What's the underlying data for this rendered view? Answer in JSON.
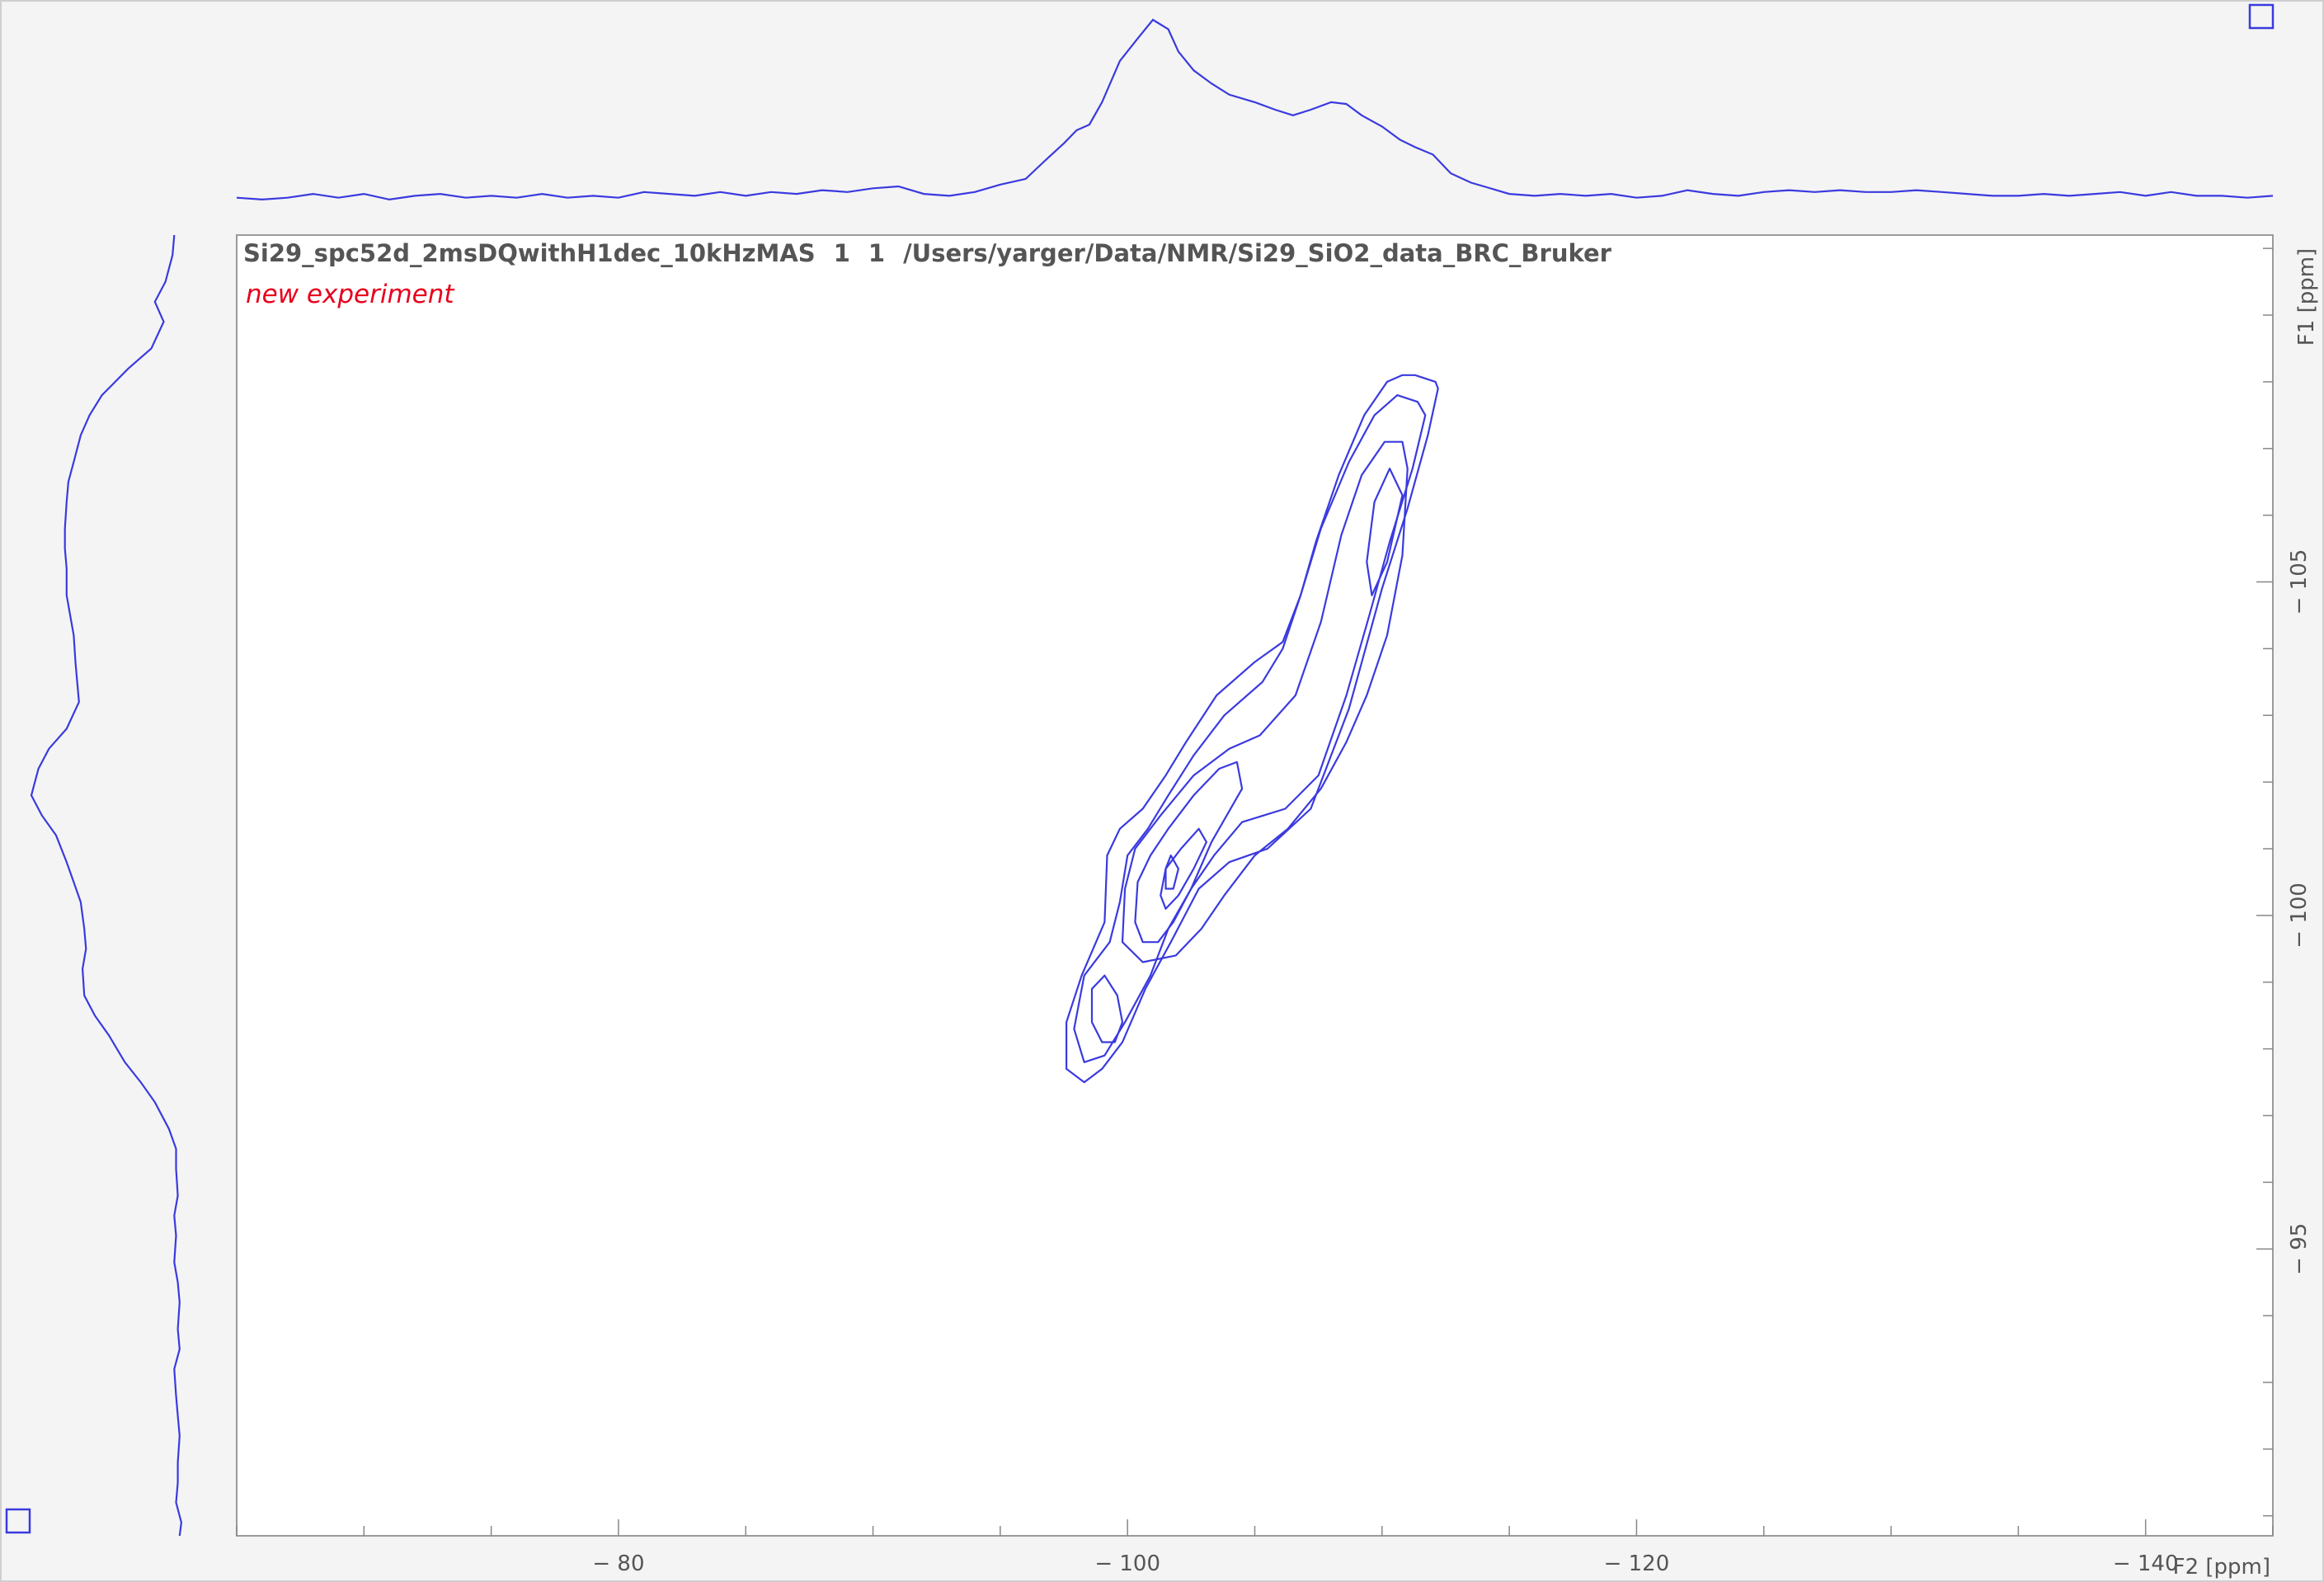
{
  "header": {
    "dataset": "Si29_spc52d_2msDQwithH1dec_10kHzMAS",
    "expno": "1",
    "procno": "1",
    "path": "/Users/yarger/Data/NMR/Si29_SiO2_data_BRC_Bruker",
    "status": "new experiment"
  },
  "colors": {
    "contour": "#3a3adf",
    "projection": "#3a3adf",
    "status": "#e8001c",
    "axis_text": "#555555",
    "plot_background": "#ffffff",
    "outer_background": "#f4f4f4",
    "frame": "#9a9a9a"
  },
  "chart_data": {
    "type": "contour",
    "x_axis": {
      "title": "F2 [ppm]",
      "range": [
        -65,
        -145
      ],
      "major_ticks": [
        -80,
        -100,
        -120,
        -140
      ],
      "tick_labels": [
        "− 80",
        "− 100",
        "− 120",
        "− 140"
      ],
      "minor_step": 5
    },
    "y_axis": {
      "title": "F1 [ppm]",
      "range": [
        -110.2,
        -90.7
      ],
      "major_ticks": [
        -105,
        -100,
        -95
      ],
      "tick_labels": [
        "− 105",
        "− 100",
        "− 95"
      ],
      "minor_step": 1
    },
    "contour_levels": [
      {
        "points": [
          [
            -112.2,
            -107.9
          ],
          [
            -111.8,
            -107.2
          ],
          [
            -111,
            -106.1
          ],
          [
            -110,
            -104.9
          ],
          [
            -108.7,
            -103.1
          ],
          [
            -107.2,
            -101.6
          ],
          [
            -105.5,
            -101
          ],
          [
            -104,
            -100.8
          ],
          [
            -102.8,
            -100.4
          ],
          [
            -101.7,
            -99.6
          ],
          [
            -100.7,
            -98.9
          ],
          [
            -99.8,
            -98.1
          ],
          [
            -99,
            -97.7
          ],
          [
            -98.3,
            -97.5
          ],
          [
            -97.6,
            -97.7
          ],
          [
            -97.6,
            -98.4
          ],
          [
            -98.2,
            -99.1
          ],
          [
            -99.1,
            -99.9
          ],
          [
            -99.2,
            -100.9
          ],
          [
            -99.7,
            -101.3
          ],
          [
            -100.6,
            -101.6
          ],
          [
            -101.5,
            -102.1
          ],
          [
            -102.3,
            -102.6
          ],
          [
            -103.5,
            -103.3
          ],
          [
            -105,
            -103.8
          ],
          [
            -106.1,
            -104.1
          ],
          [
            -106.8,
            -104.8
          ],
          [
            -107.4,
            -105.6
          ],
          [
            -108.3,
            -106.6
          ],
          [
            -109.3,
            -107.5
          ],
          [
            -110.2,
            -108
          ],
          [
            -110.8,
            -108.1
          ],
          [
            -111.3,
            -108.1
          ],
          [
            -112.1,
            -108
          ]
        ]
      },
      {
        "points": [
          [
            -111.7,
            -107.5
          ],
          [
            -111.2,
            -106.7
          ],
          [
            -110.3,
            -105.6
          ],
          [
            -109.5,
            -104.5
          ],
          [
            -108.6,
            -103.3
          ],
          [
            -107.5,
            -102.1
          ],
          [
            -106.2,
            -101.6
          ],
          [
            -104.5,
            -101.4
          ],
          [
            -103.4,
            -100.9
          ],
          [
            -102.5,
            -100.4
          ],
          [
            -101.6,
            -99.8
          ],
          [
            -100.9,
            -99.1
          ],
          [
            -99.9,
            -98.4
          ],
          [
            -99.1,
            -97.9
          ],
          [
            -98.3,
            -97.8
          ],
          [
            -97.9,
            -98.3
          ],
          [
            -98.3,
            -99.1
          ],
          [
            -99.3,
            -99.6
          ],
          [
            -99.7,
            -100.2
          ],
          [
            -100,
            -100.9
          ],
          [
            -100.8,
            -101.3
          ],
          [
            -101.6,
            -101.8
          ],
          [
            -102.6,
            -102.4
          ],
          [
            -103.8,
            -103
          ],
          [
            -105.3,
            -103.5
          ],
          [
            -106.1,
            -104
          ],
          [
            -106.8,
            -104.8
          ],
          [
            -107.6,
            -105.8
          ],
          [
            -108.7,
            -106.8
          ],
          [
            -109.7,
            -107.5
          ],
          [
            -110.6,
            -107.8
          ],
          [
            -111.4,
            -107.7
          ]
        ]
      },
      {
        "points": [
          [
            -111,
            -106.7
          ],
          [
            -110.8,
            -105.4
          ],
          [
            -110.2,
            -104.2
          ],
          [
            -109.4,
            -103.3
          ],
          [
            -108.6,
            -102.6
          ],
          [
            -107.6,
            -101.9
          ],
          [
            -106.3,
            -101.3
          ],
          [
            -105,
            -100.9
          ],
          [
            -103.8,
            -100.3
          ],
          [
            -102.9,
            -99.8
          ],
          [
            -101.9,
            -99.4
          ],
          [
            -100.6,
            -99.3
          ],
          [
            -99.8,
            -99.6
          ],
          [
            -99.9,
            -100.4
          ],
          [
            -100.3,
            -101
          ],
          [
            -101.3,
            -101.5
          ],
          [
            -102.6,
            -102.1
          ],
          [
            -104,
            -102.5
          ],
          [
            -105.2,
            -102.7
          ],
          [
            -106.6,
            -103.3
          ],
          [
            -107.6,
            -104.4
          ],
          [
            -108.4,
            -105.7
          ],
          [
            -109.2,
            -106.6
          ],
          [
            -110.1,
            -107.1
          ],
          [
            -110.8,
            -107.1
          ]
        ]
      },
      {
        "points": [
          [
            -110.8,
            -106.3
          ],
          [
            -110.2,
            -105.3
          ],
          [
            -109.6,
            -104.8
          ],
          [
            -109.4,
            -105.3
          ],
          [
            -109.7,
            -106.2
          ],
          [
            -110.3,
            -106.7
          ]
        ]
      },
      {
        "points": [
          [
            -104.5,
            -101.9
          ],
          [
            -103.3,
            -101.1
          ],
          [
            -102.5,
            -100.4
          ],
          [
            -101.8,
            -99.9
          ],
          [
            -101.2,
            -99.6
          ],
          [
            -100.6,
            -99.6
          ],
          [
            -100.3,
            -99.9
          ],
          [
            -100.4,
            -100.5
          ],
          [
            -100.9,
            -100.9
          ],
          [
            -101.6,
            -101.3
          ],
          [
            -102.6,
            -101.8
          ],
          [
            -103.6,
            -102.2
          ],
          [
            -104.3,
            -102.3
          ]
        ]
      },
      {
        "points": [
          [
            -103.1,
            -101.1
          ],
          [
            -102.6,
            -100.7
          ],
          [
            -102,
            -100.3
          ],
          [
            -101.5,
            -100.1
          ],
          [
            -101.3,
            -100.3
          ],
          [
            -101.5,
            -100.7
          ],
          [
            -102.1,
            -101
          ],
          [
            -102.8,
            -101.3
          ]
        ]
      },
      {
        "points": [
          [
            -102,
            -100.7
          ],
          [
            -101.8,
            -100.4
          ],
          [
            -101.5,
            -100.4
          ],
          [
            -101.5,
            -100.7
          ],
          [
            -101.7,
            -100.9
          ]
        ]
      },
      {
        "points": [
          [
            -99.8,
            -98.4
          ],
          [
            -99.6,
            -98.8
          ],
          [
            -99.1,
            -99.1
          ],
          [
            -98.6,
            -98.9
          ],
          [
            -98.6,
            -98.4
          ],
          [
            -99,
            -98.1
          ],
          [
            -99.5,
            -98.1
          ]
        ]
      }
    ],
    "f2_projection": {
      "x": [
        -65,
        -66,
        -67,
        -68,
        -69,
        -70,
        -71,
        -72,
        -73,
        -74,
        -75,
        -76,
        -77,
        -78,
        -79,
        -80,
        -81,
        -82,
        -83,
        -84,
        -85,
        -86,
        -87,
        -88,
        -89,
        -90,
        -91,
        -92,
        -93,
        -94,
        -95,
        -96,
        -96.7,
        -97.5,
        -98,
        -98.5,
        -99,
        -99.7,
        -100.4,
        -101,
        -101.6,
        -102,
        -102.6,
        -103.3,
        -104,
        -105,
        -105.8,
        -106.5,
        -107.2,
        -108,
        -108.6,
        -109.2,
        -110,
        -110.7,
        -111.3,
        -112,
        -112.7,
        -113.5,
        -114,
        -115,
        -116,
        -117,
        -118,
        -119,
        -120,
        -121,
        -122,
        -123,
        -124,
        -125,
        -126,
        -127,
        -128,
        -129,
        -130,
        -131,
        -132,
        -133,
        -134,
        -135,
        -136,
        -137,
        -138,
        -139,
        -140,
        -141,
        -142,
        -143,
        -144,
        -145
      ],
      "y": [
        0.05,
        0.04,
        0.05,
        0.07,
        0.05,
        0.07,
        0.04,
        0.06,
        0.07,
        0.05,
        0.06,
        0.05,
        0.07,
        0.05,
        0.06,
        0.05,
        0.08,
        0.07,
        0.06,
        0.08,
        0.06,
        0.08,
        0.07,
        0.09,
        0.08,
        0.1,
        0.11,
        0.07,
        0.06,
        0.08,
        0.12,
        0.15,
        0.24,
        0.34,
        0.41,
        0.44,
        0.56,
        0.78,
        0.9,
        1,
        0.95,
        0.83,
        0.73,
        0.66,
        0.6,
        0.56,
        0.52,
        0.49,
        0.52,
        0.56,
        0.55,
        0.49,
        0.43,
        0.36,
        0.32,
        0.28,
        0.18,
        0.13,
        0.11,
        0.07,
        0.06,
        0.07,
        0.06,
        0.07,
        0.05,
        0.06,
        0.09,
        0.07,
        0.06,
        0.08,
        0.09,
        0.08,
        0.09,
        0.08,
        0.08,
        0.09,
        0.08,
        0.07,
        0.06,
        0.06,
        0.07,
        0.06,
        0.07,
        0.08,
        0.06,
        0.08,
        0.06,
        0.06,
        0.05,
        0.06,
        0.07
      ]
    },
    "f1_projection": {
      "y": [
        -110.2,
        -109.9,
        -109.5,
        -109.2,
        -108.9,
        -108.5,
        -108.2,
        -107.8,
        -107.5,
        -107.2,
        -106.8,
        -106.5,
        -106.2,
        -105.8,
        -105.5,
        -105.2,
        -104.8,
        -104.5,
        -104.2,
        -103.8,
        -103.5,
        -103.2,
        -102.8,
        -102.5,
        -102.2,
        -101.8,
        -101.5,
        -101.2,
        -100.8,
        -100.5,
        -100.2,
        -99.8,
        -99.5,
        -99.2,
        -98.8,
        -98.5,
        -98.2,
        -97.8,
        -97.5,
        -97.2,
        -96.8,
        -96.5,
        -96.2,
        -95.8,
        -95.5,
        -95.2,
        -94.8,
        -94.5,
        -94.2,
        -93.8,
        -93.5,
        -93.2,
        -92.8,
        -92.5,
        -92.2,
        -91.8,
        -91.5,
        -91.2,
        -90.9,
        -90.7
      ],
      "intensity": [
        0.19,
        0.2,
        0.24,
        0.3,
        0.25,
        0.32,
        0.45,
        0.6,
        0.67,
        0.72,
        0.76,
        0.79,
        0.8,
        0.81,
        0.81,
        0.8,
        0.8,
        0.78,
        0.76,
        0.75,
        0.74,
        0.73,
        0.8,
        0.9,
        0.96,
        1,
        0.94,
        0.86,
        0.8,
        0.76,
        0.72,
        0.7,
        0.69,
        0.71,
        0.7,
        0.64,
        0.56,
        0.47,
        0.38,
        0.3,
        0.22,
        0.18,
        0.18,
        0.17,
        0.19,
        0.18,
        0.19,
        0.17,
        0.16,
        0.17,
        0.16,
        0.19,
        0.18,
        0.17,
        0.16,
        0.17,
        0.17,
        0.18,
        0.15,
        0.16
      ]
    }
  }
}
